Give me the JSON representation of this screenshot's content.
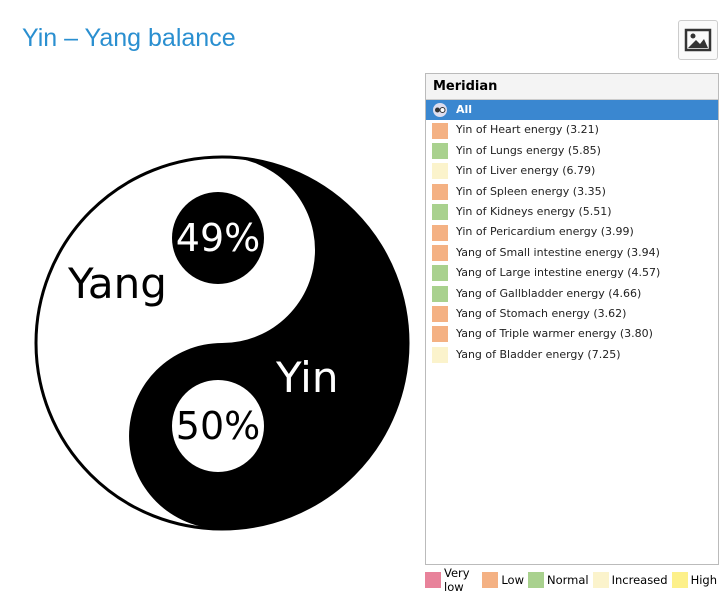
{
  "header": {
    "title": "Yin – Yang balance"
  },
  "balance": {
    "yang_label": "Yang",
    "yang_percent": "49%",
    "yin_label": "Yin",
    "yin_percent": "50%"
  },
  "list": {
    "title": "Meridian",
    "all": "All",
    "items": [
      {
        "label": "Yin of Heart energy (3.21)",
        "color": "#f4b183"
      },
      {
        "label": "Yin of Lungs energy (5.85)",
        "color": "#a9d18e"
      },
      {
        "label": "Yin of Liver energy (6.79)",
        "color": "#fbf3cc"
      },
      {
        "label": "Yin of Spleen energy (3.35)",
        "color": "#f4b183"
      },
      {
        "label": "Yin of Kidneys energy (5.51)",
        "color": "#a9d18e"
      },
      {
        "label": "Yin of Pericardium energy (3.99)",
        "color": "#f4b183"
      },
      {
        "label": "Yang of Small intestine energy (3.94)",
        "color": "#f4b183"
      },
      {
        "label": "Yang of Large intestine energy (4.57)",
        "color": "#a9d18e"
      },
      {
        "label": "Yang of Gallbladder energy (4.66)",
        "color": "#a9d18e"
      },
      {
        "label": "Yang of Stomach energy (3.62)",
        "color": "#f4b183"
      },
      {
        "label": "Yang of Triple warmer energy (3.80)",
        "color": "#f4b183"
      },
      {
        "label": "Yang of Bladder energy (7.25)",
        "color": "#fbf3cc"
      }
    ]
  },
  "legend": [
    {
      "label": "Very low",
      "color": "#e8829a"
    },
    {
      "label": "Low",
      "color": "#f4b183"
    },
    {
      "label": "Normal",
      "color": "#a9d18e"
    },
    {
      "label": "Increased",
      "color": "#fbf3cc"
    },
    {
      "label": "High",
      "color": "#fdf08a"
    }
  ]
}
